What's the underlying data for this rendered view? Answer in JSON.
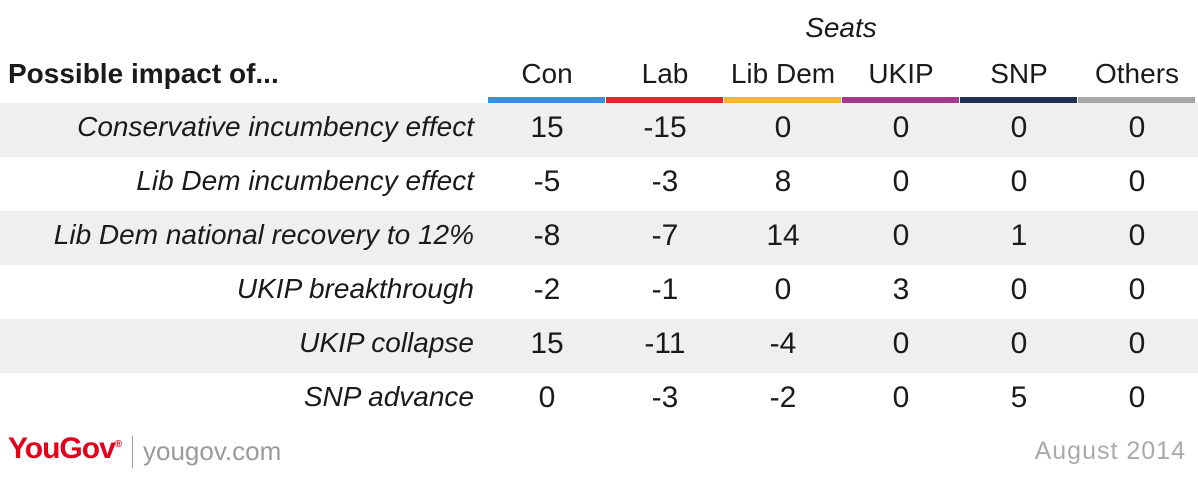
{
  "chart_data": {
    "type": "table",
    "title": "",
    "column_group_label": "Seats",
    "row_header": "Possible impact of...",
    "columns": [
      {
        "name": "Con",
        "color": "#3a8fd9"
      },
      {
        "name": "Lab",
        "color": "#e4232e"
      },
      {
        "name": "Lib Dem",
        "color": "#f6b531"
      },
      {
        "name": "UKIP",
        "color": "#a4398f"
      },
      {
        "name": "SNP",
        "color": "#1e2f4f"
      },
      {
        "name": "Others",
        "color": "#a6a6a6"
      }
    ],
    "rows": [
      {
        "label": "Conservative incumbency effect",
        "values": [
          "15",
          "-15",
          "0",
          "0",
          "0",
          "0"
        ]
      },
      {
        "label": "Lib Dem incumbency effect",
        "values": [
          "-5",
          "-3",
          "8",
          "0",
          "0",
          "0"
        ]
      },
      {
        "label": "Lib Dem national recovery to 12%",
        "values": [
          "-8",
          "-7",
          "14",
          "0",
          "1",
          "0"
        ]
      },
      {
        "label": "UKIP breakthrough",
        "values": [
          "-2",
          "-1",
          "0",
          "3",
          "0",
          "0"
        ]
      },
      {
        "label": "UKIP collapse",
        "values": [
          "15",
          "-11",
          "-4",
          "0",
          "0",
          "0"
        ]
      },
      {
        "label": "SNP advance",
        "values": [
          "0",
          "-3",
          "-2",
          "0",
          "5",
          "0"
        ]
      }
    ]
  },
  "footer": {
    "logo": "YouGov",
    "site": "yougov.com",
    "date": "August  2014"
  }
}
